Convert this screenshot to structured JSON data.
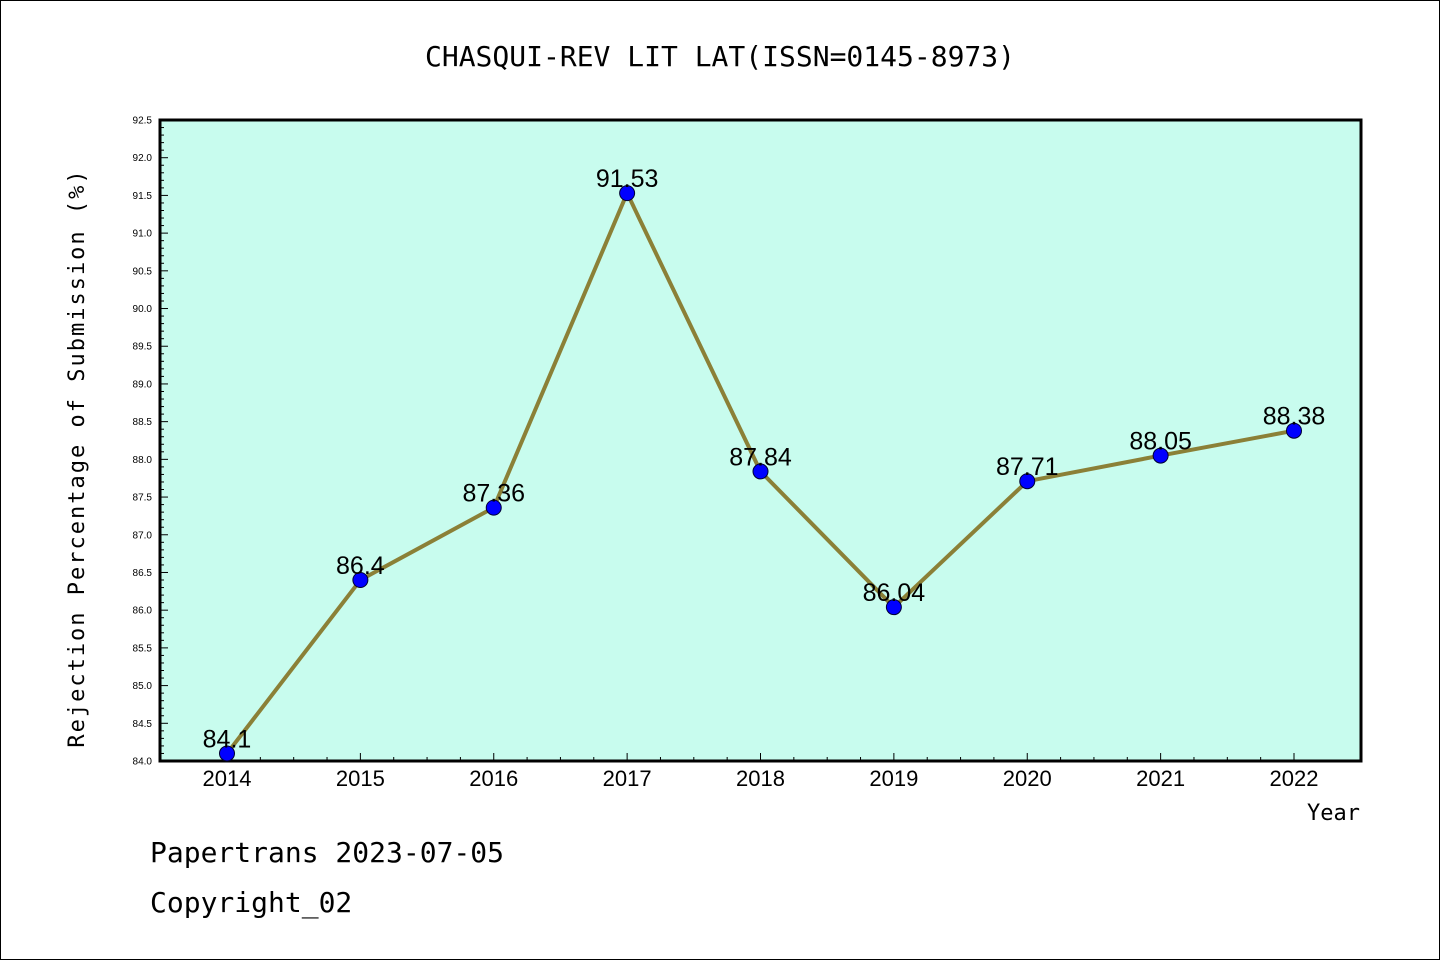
{
  "footer": {
    "line1": "Papertrans 2023-07-05",
    "line2": "Copyright_02"
  },
  "colors": {
    "plot_background": "#c8fcee",
    "line": "#8b8037",
    "marker": "#0000ff"
  },
  "chart_data": {
    "type": "line",
    "title": "CHASQUI-REV LIT LAT(ISSN=0145-8973)",
    "xlabel": "Year",
    "ylabel": "Rejection Percentage of Submission (%)",
    "categories": [
      "2014",
      "2015",
      "2016",
      "2017",
      "2018",
      "2019",
      "2020",
      "2021",
      "2022"
    ],
    "series": [
      {
        "values": [
          84.1,
          86.4,
          87.36,
          91.53,
          87.84,
          86.04,
          87.71,
          88.05,
          88.38
        ],
        "labels": [
          "84.1",
          "86.4",
          "87.36",
          "91.53",
          "87.84",
          "86.04",
          "87.71",
          "88.05",
          "88.38"
        ]
      }
    ],
    "ylim": [
      84.0,
      92.5
    ],
    "ytick_step": 0.5,
    "grid": false,
    "legend": "none"
  }
}
